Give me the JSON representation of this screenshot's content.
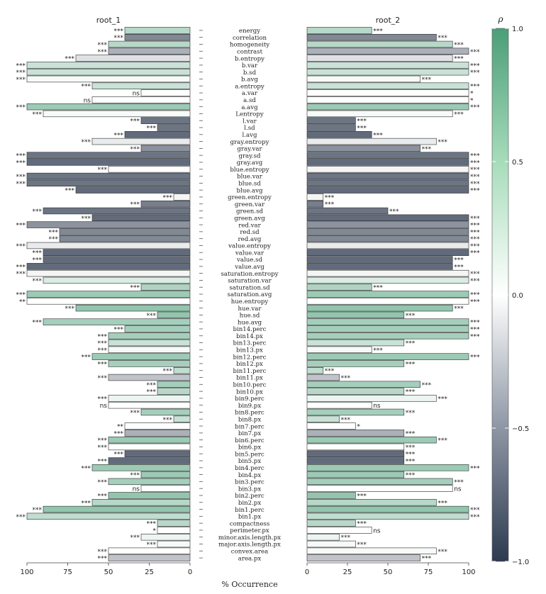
{
  "chart_data": {
    "type": "bar",
    "panels": [
      {
        "title": "root_1",
        "reversed": true
      },
      {
        "title": "root_2",
        "reversed": false
      }
    ],
    "xlabel": "% Occurrence",
    "xlim": [
      0,
      100
    ],
    "xticks": [
      "0",
      "25",
      "50",
      "75",
      "100"
    ],
    "legend": {
      "title": "ρ",
      "range": [
        -1,
        1
      ],
      "ticks": [
        "1.0",
        "0.5",
        "0.0",
        "−0.5",
        "−1.0"
      ],
      "placement": "right"
    },
    "colors": {
      "neg": "#2d3a4f",
      "mid": "#ffffff",
      "pos": "#4b9e78",
      "border": "#2a2a2a"
    },
    "rows": [
      {
        "label": "energy",
        "root_1": {
          "value": 40,
          "rho": 0.4,
          "sig": "***"
        },
        "root_2": {
          "value": 40,
          "rho": 0.4,
          "sig": "***"
        }
      },
      {
        "label": "correlation",
        "root_1": {
          "value": 40,
          "rho": -0.6,
          "sig": "***"
        },
        "root_2": {
          "value": 80,
          "rho": -0.6,
          "sig": "***"
        }
      },
      {
        "label": "homogeneity",
        "root_1": {
          "value": 50,
          "rho": 0.4,
          "sig": "***"
        },
        "root_2": {
          "value": 90,
          "rho": 0.4,
          "sig": "***"
        }
      },
      {
        "label": "contrast",
        "root_1": {
          "value": 50,
          "rho": -0.4,
          "sig": "***"
        },
        "root_2": {
          "value": 100,
          "rho": -0.4,
          "sig": "***"
        }
      },
      {
        "label": "b.entropy",
        "root_1": {
          "value": 70,
          "rho": -0.15,
          "sig": "***"
        },
        "root_2": {
          "value": 90,
          "rho": -0.15,
          "sig": "***"
        }
      },
      {
        "label": "b.var",
        "root_1": {
          "value": 100,
          "rho": 0.3,
          "sig": "***"
        },
        "root_2": {
          "value": 100,
          "rho": 0.3,
          "sig": "***"
        }
      },
      {
        "label": "b.sd",
        "root_1": {
          "value": 100,
          "rho": 0.3,
          "sig": "***"
        },
        "root_2": {
          "value": 100,
          "rho": 0.3,
          "sig": "***"
        }
      },
      {
        "label": "b.avg",
        "root_1": {
          "value": 100,
          "rho": 0.05,
          "sig": "***"
        },
        "root_2": {
          "value": 70,
          "rho": 0.05,
          "sig": "***"
        }
      },
      {
        "label": "a.entropy",
        "root_1": {
          "value": 60,
          "rho": 0.3,
          "sig": "***"
        },
        "root_2": {
          "value": 100,
          "rho": 0.3,
          "sig": "***"
        }
      },
      {
        "label": "a.var",
        "root_1": {
          "value": 30,
          "rho": 0.0,
          "sig": "ns"
        },
        "root_2": {
          "value": 100,
          "rho": 0.0,
          "sig": "*"
        }
      },
      {
        "label": "a.sd",
        "root_1": {
          "value": 60,
          "rho": 0.0,
          "sig": "ns"
        },
        "root_2": {
          "value": 100,
          "rho": 0.0,
          "sig": "*"
        }
      },
      {
        "label": "a.avg",
        "root_1": {
          "value": 100,
          "rho": 0.55,
          "sig": "***"
        },
        "root_2": {
          "value": 100,
          "rho": 0.55,
          "sig": "***"
        }
      },
      {
        "label": "Lentropy",
        "root_1": {
          "value": 90,
          "rho": 0.05,
          "sig": "***"
        },
        "root_2": {
          "value": 90,
          "rho": 0.05,
          "sig": "***"
        }
      },
      {
        "label": "l.var",
        "root_1": {
          "value": 30,
          "rho": -0.7,
          "sig": "***"
        },
        "root_2": {
          "value": 30,
          "rho": -0.7,
          "sig": "***"
        }
      },
      {
        "label": "l.sd",
        "root_1": {
          "value": 20,
          "rho": -0.7,
          "sig": "***"
        },
        "root_2": {
          "value": 30,
          "rho": -0.7,
          "sig": "***"
        }
      },
      {
        "label": "l.avg",
        "root_1": {
          "value": 40,
          "rho": -0.75,
          "sig": "***"
        },
        "root_2": {
          "value": 40,
          "rho": -0.75,
          "sig": "***"
        }
      },
      {
        "label": "gray.entropy",
        "root_1": {
          "value": 60,
          "rho": -0.1,
          "sig": "***"
        },
        "root_2": {
          "value": 80,
          "rho": -0.1,
          "sig": "***"
        }
      },
      {
        "label": "gray.var",
        "root_1": {
          "value": 30,
          "rho": -0.55,
          "sig": "***"
        },
        "root_2": {
          "value": 70,
          "rho": -0.55,
          "sig": "***"
        }
      },
      {
        "label": "gray.sd",
        "root_1": {
          "value": 100,
          "rho": -0.7,
          "sig": "***"
        },
        "root_2": {
          "value": 100,
          "rho": -0.7,
          "sig": "***"
        }
      },
      {
        "label": "gray.avg",
        "root_1": {
          "value": 100,
          "rho": -0.75,
          "sig": "***"
        },
        "root_2": {
          "value": 100,
          "rho": -0.75,
          "sig": "***"
        }
      },
      {
        "label": "blue.entropy",
        "root_1": {
          "value": 50,
          "rho": 0.0,
          "sig": "***"
        },
        "root_2": {
          "value": 100,
          "rho": -0.05,
          "sig": "***"
        }
      },
      {
        "label": "blue.var",
        "root_1": {
          "value": 100,
          "rho": -0.7,
          "sig": "***"
        },
        "root_2": {
          "value": 100,
          "rho": -0.7,
          "sig": "***"
        }
      },
      {
        "label": "blue.sd",
        "root_1": {
          "value": 100,
          "rho": -0.7,
          "sig": "***"
        },
        "root_2": {
          "value": 100,
          "rho": -0.7,
          "sig": "***"
        }
      },
      {
        "label": "blue.avg",
        "root_1": {
          "value": 70,
          "rho": -0.75,
          "sig": "***"
        },
        "root_2": {
          "value": 100,
          "rho": -0.75,
          "sig": "***"
        }
      },
      {
        "label": "green.entropy",
        "root_1": {
          "value": 10,
          "rho": -0.05,
          "sig": "***"
        },
        "root_2": {
          "value": 10,
          "rho": -0.05,
          "sig": "***"
        }
      },
      {
        "label": "green.var",
        "root_1": {
          "value": 30,
          "rho": -0.65,
          "sig": "***"
        },
        "root_2": {
          "value": 10,
          "rho": -0.65,
          "sig": "***"
        }
      },
      {
        "label": "green.sd",
        "root_1": {
          "value": 90,
          "rho": -0.7,
          "sig": "***"
        },
        "root_2": {
          "value": 50,
          "rho": -0.7,
          "sig": "***"
        }
      },
      {
        "label": "green.avg",
        "root_1": {
          "value": 60,
          "rho": -0.75,
          "sig": "***"
        },
        "root_2": {
          "value": 100,
          "rho": -0.75,
          "sig": "***"
        }
      },
      {
        "label": "red.var",
        "root_1": {
          "value": 100,
          "rho": -0.55,
          "sig": "***"
        },
        "root_2": {
          "value": 100,
          "rho": -0.55,
          "sig": "***"
        }
      },
      {
        "label": "red.sd",
        "root_1": {
          "value": 80,
          "rho": -0.6,
          "sig": "***"
        },
        "root_2": {
          "value": 100,
          "rho": -0.6,
          "sig": "***"
        }
      },
      {
        "label": "red.avg",
        "root_1": {
          "value": 80,
          "rho": -0.6,
          "sig": "***"
        },
        "root_2": {
          "value": 100,
          "rho": -0.6,
          "sig": "***"
        }
      },
      {
        "label": "value.entropy",
        "root_1": {
          "value": 100,
          "rho": -0.1,
          "sig": "***"
        },
        "root_2": {
          "value": 100,
          "rho": -0.1,
          "sig": "***"
        }
      },
      {
        "label": "value.var",
        "root_1": {
          "value": 90,
          "rho": -0.75,
          "sig": "***"
        },
        "root_2": {
          "value": 100,
          "rho": -0.75,
          "sig": "***"
        }
      },
      {
        "label": "value.sd",
        "root_1": {
          "value": 90,
          "rho": -0.75,
          "sig": "***"
        },
        "root_2": {
          "value": 90,
          "rho": -0.75,
          "sig": "***"
        }
      },
      {
        "label": "value.avg",
        "root_1": {
          "value": 100,
          "rho": -0.75,
          "sig": "***"
        },
        "root_2": {
          "value": 90,
          "rho": -0.75,
          "sig": "***"
        }
      },
      {
        "label": "saturation.entropy",
        "root_1": {
          "value": 100,
          "rho": -0.05,
          "sig": "***"
        },
        "root_2": {
          "value": 100,
          "rho": -0.05,
          "sig": "***"
        }
      },
      {
        "label": "saturation.var",
        "root_1": {
          "value": 90,
          "rho": 0.2,
          "sig": "***"
        },
        "root_2": {
          "value": 100,
          "rho": 0.2,
          "sig": "***"
        }
      },
      {
        "label": "saturation.sd",
        "root_1": {
          "value": 30,
          "rho": 0.45,
          "sig": "***"
        },
        "root_2": {
          "value": 40,
          "rho": 0.45,
          "sig": "***"
        }
      },
      {
        "label": "saturation.avg",
        "root_1": {
          "value": 100,
          "rho": 0.55,
          "sig": "***"
        },
        "root_2": {
          "value": 100,
          "rho": 0.55,
          "sig": "***"
        }
      },
      {
        "label": "hue.entropy",
        "root_1": {
          "value": 100,
          "rho": 0.0,
          "sig": "**"
        },
        "root_2": {
          "value": 100,
          "rho": 0.0,
          "sig": "***"
        }
      },
      {
        "label": "hue.var",
        "root_1": {
          "value": 70,
          "rho": 0.6,
          "sig": "***"
        },
        "root_2": {
          "value": 90,
          "rho": 0.6,
          "sig": "***"
        }
      },
      {
        "label": "hue.sd",
        "root_1": {
          "value": 20,
          "rho": 0.6,
          "sig": "***"
        },
        "root_2": {
          "value": 60,
          "rho": 0.6,
          "sig": "***"
        }
      },
      {
        "label": "hue.avg",
        "root_1": {
          "value": 90,
          "rho": 0.5,
          "sig": "***"
        },
        "root_2": {
          "value": 100,
          "rho": 0.5,
          "sig": "***"
        }
      },
      {
        "label": "bin14.perc",
        "root_1": {
          "value": 40,
          "rho": 0.5,
          "sig": "***"
        },
        "root_2": {
          "value": 100,
          "rho": 0.5,
          "sig": "***"
        }
      },
      {
        "label": "bin14.px",
        "root_1": {
          "value": 50,
          "rho": 0.5,
          "sig": "***"
        },
        "root_2": {
          "value": 100,
          "rho": 0.5,
          "sig": "***"
        }
      },
      {
        "label": "bin13.perc",
        "root_1": {
          "value": 50,
          "rho": 0.3,
          "sig": "***"
        },
        "root_2": {
          "value": 60,
          "rho": 0.3,
          "sig": "***"
        }
      },
      {
        "label": "bin13.px",
        "root_1": {
          "value": 50,
          "rho": 0.05,
          "sig": "***"
        },
        "root_2": {
          "value": 40,
          "rho": 0.05,
          "sig": "***"
        }
      },
      {
        "label": "bin12.perc",
        "root_1": {
          "value": 60,
          "rho": 0.55,
          "sig": "***"
        },
        "root_2": {
          "value": 100,
          "rho": 0.55,
          "sig": "***"
        }
      },
      {
        "label": "bin12.px",
        "root_1": {
          "value": 50,
          "rho": 0.5,
          "sig": "***"
        },
        "root_2": {
          "value": 60,
          "rho": 0.5,
          "sig": "***"
        }
      },
      {
        "label": "bin11.perc",
        "root_1": {
          "value": 10,
          "rho": 0.35,
          "sig": "***"
        },
        "root_2": {
          "value": 10,
          "rho": 0.35,
          "sig": "***"
        }
      },
      {
        "label": "bin11.px",
        "root_1": {
          "value": 50,
          "rho": -0.3,
          "sig": "***"
        },
        "root_2": {
          "value": 20,
          "rho": -0.3,
          "sig": "***"
        }
      },
      {
        "label": "bin10.perc",
        "root_1": {
          "value": 20,
          "rho": 0.5,
          "sig": "***"
        },
        "root_2": {
          "value": 70,
          "rho": 0.5,
          "sig": "***"
        }
      },
      {
        "label": "bin10.px",
        "root_1": {
          "value": 20,
          "rho": 0.4,
          "sig": "***"
        },
        "root_2": {
          "value": 60,
          "rho": 0.4,
          "sig": "***"
        }
      },
      {
        "label": "bin9.perc",
        "root_1": {
          "value": 50,
          "rho": 0.1,
          "sig": "***"
        },
        "root_2": {
          "value": 80,
          "rho": 0.1,
          "sig": "***"
        }
      },
      {
        "label": "bin9.px",
        "root_1": {
          "value": 50,
          "rho": 0.0,
          "sig": "ns"
        },
        "root_2": {
          "value": 40,
          "rho": 0.0,
          "sig": "ns"
        }
      },
      {
        "label": "bin8.perc",
        "root_1": {
          "value": 30,
          "rho": 0.5,
          "sig": "***"
        },
        "root_2": {
          "value": 60,
          "rho": 0.5,
          "sig": "***"
        }
      },
      {
        "label": "bin8.px",
        "root_1": {
          "value": 10,
          "rho": 0.3,
          "sig": "***"
        },
        "root_2": {
          "value": 20,
          "rho": 0.3,
          "sig": "***"
        }
      },
      {
        "label": "bin7.perc",
        "root_1": {
          "value": 40,
          "rho": 0.0,
          "sig": "**"
        },
        "root_2": {
          "value": 30,
          "rho": 0.0,
          "sig": "*"
        }
      },
      {
        "label": "bin7.px",
        "root_1": {
          "value": 40,
          "rho": -0.4,
          "sig": "***"
        },
        "root_2": {
          "value": 60,
          "rho": -0.4,
          "sig": "***"
        }
      },
      {
        "label": "bin6.perc",
        "root_1": {
          "value": 50,
          "rho": 0.55,
          "sig": "***"
        },
        "root_2": {
          "value": 80,
          "rho": 0.55,
          "sig": "***"
        }
      },
      {
        "label": "bin6.px",
        "root_1": {
          "value": 50,
          "rho": 0.0,
          "sig": "***"
        },
        "root_2": {
          "value": 60,
          "rho": 0.0,
          "sig": "***"
        }
      },
      {
        "label": "bin5.perc",
        "root_1": {
          "value": 40,
          "rho": -0.75,
          "sig": "***"
        },
        "root_2": {
          "value": 60,
          "rho": -0.75,
          "sig": "***"
        }
      },
      {
        "label": "bin5.px",
        "root_1": {
          "value": 50,
          "rho": -0.75,
          "sig": "***"
        },
        "root_2": {
          "value": 60,
          "rho": -0.75,
          "sig": "***"
        }
      },
      {
        "label": "bin4.perc",
        "root_1": {
          "value": 60,
          "rho": 0.55,
          "sig": "***"
        },
        "root_2": {
          "value": 100,
          "rho": 0.55,
          "sig": "***"
        }
      },
      {
        "label": "bin4.px",
        "root_1": {
          "value": 30,
          "rho": 0.55,
          "sig": "***"
        },
        "root_2": {
          "value": 60,
          "rho": 0.55,
          "sig": "***"
        }
      },
      {
        "label": "bin3.perc",
        "root_1": {
          "value": 50,
          "rho": 0.5,
          "sig": "***"
        },
        "root_2": {
          "value": 90,
          "rho": 0.5,
          "sig": "***"
        }
      },
      {
        "label": "bin3.px",
        "root_1": {
          "value": 30,
          "rho": 0.0,
          "sig": "ns"
        },
        "root_2": {
          "value": 90,
          "rho": 0.0,
          "sig": "ns"
        }
      },
      {
        "label": "bin2.perc",
        "root_1": {
          "value": 50,
          "rho": 0.6,
          "sig": "***"
        },
        "root_2": {
          "value": 30,
          "rho": 0.6,
          "sig": "***"
        }
      },
      {
        "label": "bin2.px",
        "root_1": {
          "value": 60,
          "rho": 0.4,
          "sig": "***"
        },
        "root_2": {
          "value": 80,
          "rho": 0.4,
          "sig": "***"
        }
      },
      {
        "label": "bin1.perc",
        "root_1": {
          "value": 90,
          "rho": 0.6,
          "sig": "***"
        },
        "root_2": {
          "value": 100,
          "rho": 0.6,
          "sig": "***"
        }
      },
      {
        "label": "bin1.px",
        "root_1": {
          "value": 100,
          "rho": 0.35,
          "sig": "***"
        },
        "root_2": {
          "value": 100,
          "rho": 0.35,
          "sig": "***"
        }
      },
      {
        "label": "compactness",
        "root_1": {
          "value": 20,
          "rho": 0.4,
          "sig": "***"
        },
        "root_2": {
          "value": 30,
          "rho": 0.4,
          "sig": "***"
        }
      },
      {
        "label": "perimeter.px",
        "root_1": {
          "value": 20,
          "rho": 0.0,
          "sig": "*"
        },
        "root_2": {
          "value": 40,
          "rho": 0.0,
          "sig": "ns"
        }
      },
      {
        "label": "minor.axis.length.px",
        "root_1": {
          "value": 30,
          "rho": 0.1,
          "sig": "***"
        },
        "root_2": {
          "value": 20,
          "rho": 0.1,
          "sig": "***"
        }
      },
      {
        "label": "major.axis.length.px",
        "root_1": {
          "value": 20,
          "rho": 0.05,
          "sig": "***"
        },
        "root_2": {
          "value": 30,
          "rho": 0.05,
          "sig": "***"
        }
      },
      {
        "label": "convex.area",
        "root_1": {
          "value": 50,
          "rho": 0.0,
          "sig": "***"
        },
        "root_2": {
          "value": 80,
          "rho": 0.05,
          "sig": "***"
        }
      },
      {
        "label": "area.px",
        "root_1": {
          "value": 50,
          "rho": -0.3,
          "sig": "***"
        },
        "root_2": {
          "value": 70,
          "rho": -0.3,
          "sig": "***"
        }
      }
    ]
  }
}
